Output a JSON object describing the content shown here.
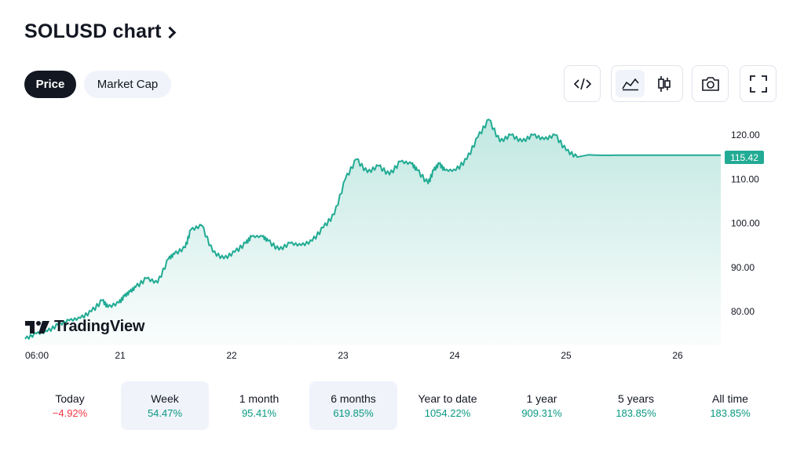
{
  "header": {
    "title": "SOLUSD chart"
  },
  "tabs": [
    {
      "label": "Price",
      "active": true
    },
    {
      "label": "Market Cap",
      "active": false
    }
  ],
  "toolbar": {
    "embed_icon": "code-icon",
    "line_icon": "area-chart-icon",
    "candle_icon": "candlestick-icon",
    "snapshot_icon": "camera-icon",
    "fullscreen_icon": "fullscreen-icon",
    "active_chart_type": "area"
  },
  "colors": {
    "accent": "#22ab94",
    "positive": "#089981",
    "negative": "#f23645",
    "selected_bg": "#f0f3fa"
  },
  "logo": {
    "text": "TradingView"
  },
  "chart_data": {
    "type": "area",
    "x_ticks": [
      "06:00",
      "21",
      "22",
      "23",
      "24",
      "25",
      "26"
    ],
    "y_ticks": [
      "120.00",
      "110.00",
      "100.00",
      "90.00",
      "80.00"
    ],
    "ylim": [
      73,
      125
    ],
    "last_price": "115.42",
    "series": [
      {
        "x": [
          0,
          0.1,
          0.2,
          0.3,
          0.4,
          0.5,
          0.6,
          0.7,
          0.75,
          0.85,
          0.9,
          0.95,
          1.0,
          1.1,
          1.2,
          1.3,
          1.35,
          1.45,
          1.5,
          1.6,
          1.7,
          1.8,
          1.9,
          2.0,
          2.05,
          2.15,
          2.2,
          2.3,
          2.4,
          2.5,
          2.6,
          2.7,
          2.8,
          2.9,
          3.0,
          3.1,
          3.2,
          3.3,
          3.4,
          3.5,
          3.55,
          3.65,
          3.7,
          3.75,
          3.8,
          3.9,
          4.0,
          4.1,
          4.2,
          4.3,
          4.4,
          4.5,
          4.6,
          4.7,
          4.8,
          4.9,
          5.0,
          5.1,
          5.2,
          5.3,
          5.4,
          5.5,
          5.6,
          5.7,
          5.8,
          5.9,
          6.0,
          6.1,
          6.15,
          6.2,
          6.25,
          6.3
        ],
        "values": [
          73.8,
          75.0,
          75.5,
          77.0,
          78.0,
          78.5,
          80.0,
          82.5,
          81.0,
          82.0,
          83.5,
          84.5,
          85.5,
          87.5,
          86.5,
          92.0,
          93.0,
          94.5,
          98.5,
          99.5,
          93.5,
          92.0,
          93.5,
          95.5,
          97.0,
          97.0,
          96.0,
          94.0,
          95.5,
          95.0,
          96.0,
          99.0,
          102.0,
          110.0,
          114.5,
          111.5,
          113.0,
          111.0,
          114.0,
          113.5,
          112.0,
          109.0,
          112.0,
          113.5,
          112.0,
          112.0,
          114.5,
          119.5,
          123.5,
          118.5,
          120.0,
          118.5,
          120.0,
          119.0,
          120.0,
          116.5,
          115.0,
          115.5,
          115.4,
          115.4,
          115.42,
          115.42,
          115.42,
          115.42,
          115.42,
          115.42,
          115.42,
          115.42,
          115.42,
          115.42,
          115.42,
          115.42
        ]
      }
    ]
  },
  "periods": [
    {
      "label": "Today",
      "value": "−4.92%",
      "sign": "neg",
      "selected": false
    },
    {
      "label": "Week",
      "value": "54.47%",
      "sign": "pos",
      "selected": true
    },
    {
      "label": "1 month",
      "value": "95.41%",
      "sign": "pos",
      "selected": false
    },
    {
      "label": "6 months",
      "value": "619.85%",
      "sign": "pos",
      "selected": true
    },
    {
      "label": "Year to date",
      "value": "1054.22%",
      "sign": "pos",
      "selected": false
    },
    {
      "label": "1 year",
      "value": "909.31%",
      "sign": "pos",
      "selected": false
    },
    {
      "label": "5 years",
      "value": "183.85%",
      "sign": "pos",
      "selected": false
    },
    {
      "label": "All time",
      "value": "183.85%",
      "sign": "pos",
      "selected": false
    }
  ]
}
